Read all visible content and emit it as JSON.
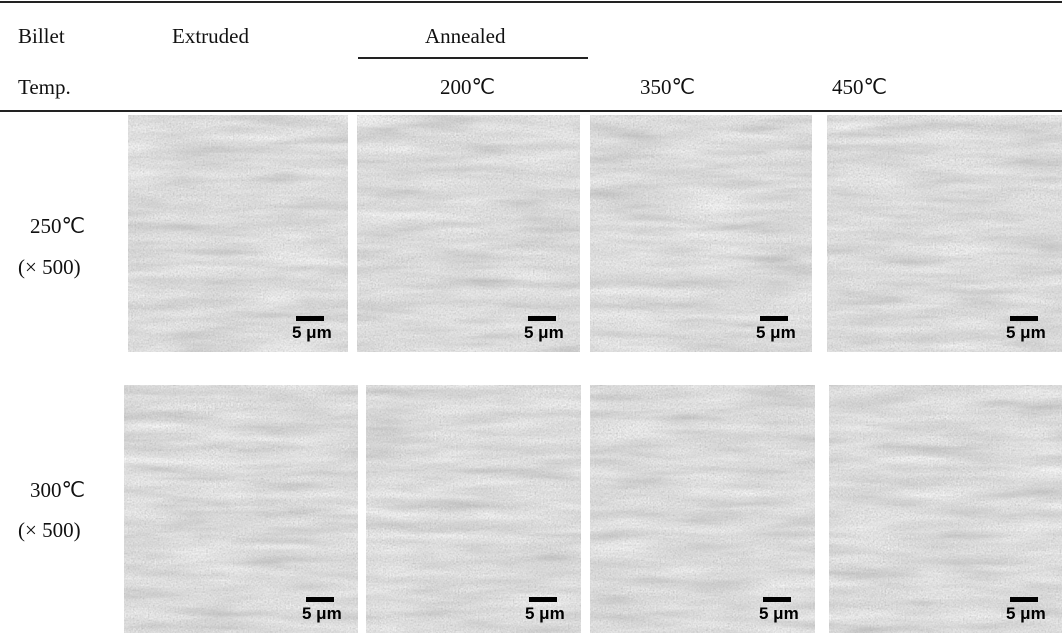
{
  "header": {
    "col0": [
      "Billet",
      "Temp."
    ],
    "extruded": "Extruded",
    "annealed": "Annealed",
    "temps": [
      "200℃",
      "350℃",
      "450℃"
    ]
  },
  "rows": [
    {
      "temp": "250℃",
      "mag": "(× 500)",
      "scale_labels": [
        "5 μm",
        "5 μm",
        "5 μm",
        "5 μm"
      ]
    },
    {
      "temp": "300℃",
      "mag": "(× 500)",
      "scale_labels": [
        "5 μm",
        "5 μm",
        "5 μm",
        "5 μm"
      ]
    }
  ]
}
